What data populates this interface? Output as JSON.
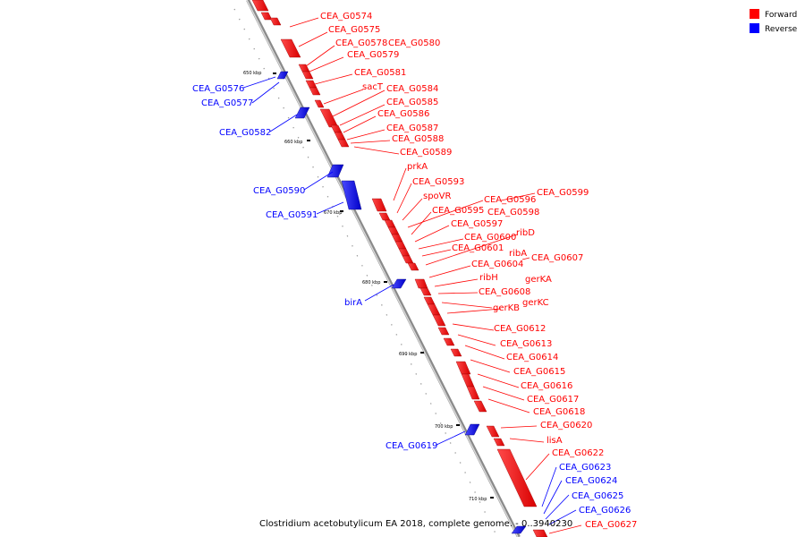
{
  "legend": {
    "forward_label": "Forward",
    "reverse_label": "Reverse",
    "forward_color": "#ff0000",
    "reverse_color": "#0000ff"
  },
  "caption": "Clostridium acetobutylicum EA 2018, complete genome. - 0..3940230",
  "ticks": [
    "650 kbp",
    "660 kbp",
    "670 kbp",
    "680 kbp",
    "690 kbp",
    "700 kbp",
    "710 kbp"
  ],
  "forward_genes": [
    "CEA_G0574",
    "CEA_G0575",
    "CEA_G0578",
    "CEA_G0580",
    "CEA_G0579",
    "CEA_G0581",
    "sacT",
    "CEA_G0584",
    "CEA_G0585",
    "CEA_G0586",
    "CEA_G0587",
    "CEA_G0588",
    "CEA_G0589",
    "prkA",
    "CEA_G0593",
    "spoVR",
    "CEA_G0596",
    "CEA_G0599",
    "CEA_G0595",
    "CEA_G0598",
    "CEA_G0597",
    "CEA_G0600",
    "ribD",
    "CEA_G0601",
    "ribA",
    "CEA_G0607",
    "CEA_G0604",
    "ribH",
    "gerKA",
    "CEA_G0608",
    "gerKC",
    "gerKB",
    "CEA_G0612",
    "CEA_G0613",
    "CEA_G0614",
    "CEA_G0615",
    "CEA_G0616",
    "CEA_G0617",
    "CEA_G0618",
    "CEA_G0620",
    "lisA",
    "CEA_G0622",
    "CEA_G0627"
  ],
  "reverse_genes": [
    "CEA_G0576",
    "CEA_G0577",
    "CEA_G0582",
    "CEA_G0590",
    "CEA_G0591",
    "birA",
    "CEA_G0619",
    "CEA_G0623",
    "CEA_G0624",
    "CEA_G0625",
    "CEA_G0626"
  ]
}
